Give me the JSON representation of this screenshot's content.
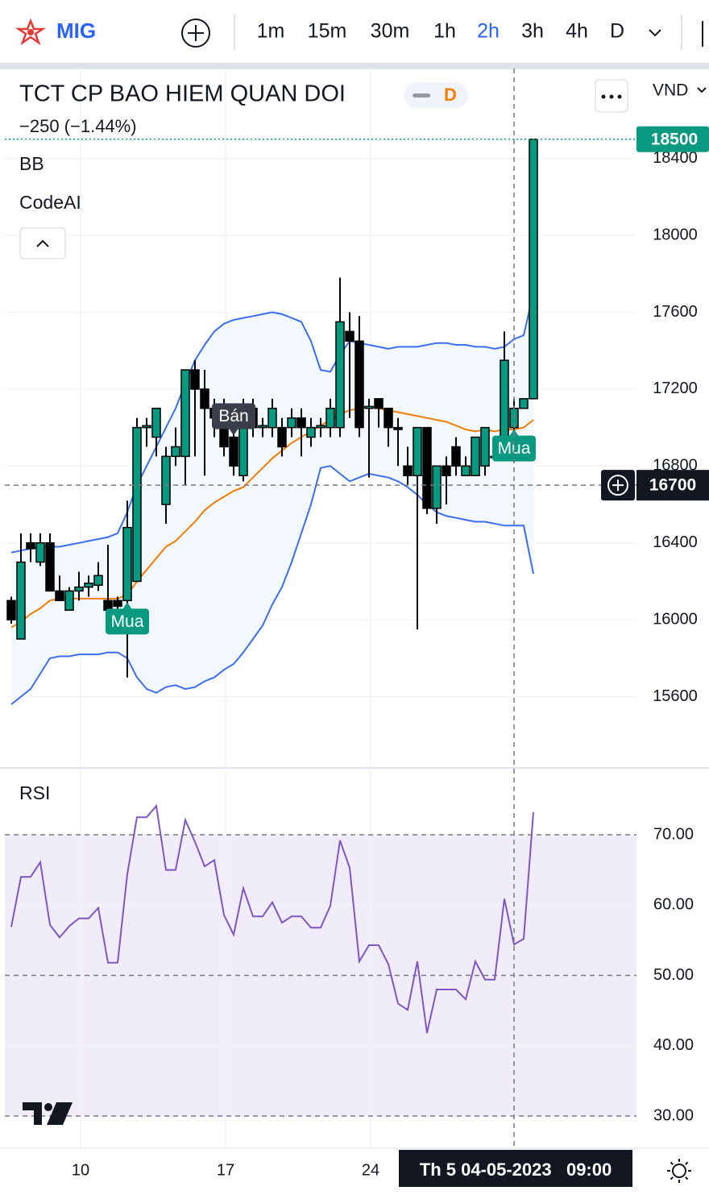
{
  "toolbar": {
    "symbol": "MIG",
    "intervals": [
      "1m",
      "15m",
      "30m",
      "1h",
      "2h",
      "3h",
      "4h",
      "D"
    ],
    "active_interval": 4,
    "active_color": "#2962ff"
  },
  "header": {
    "title": "TCT CP BAO HIEM QUAN DOI",
    "badge": "D",
    "change": "−250 (−1.44%)",
    "indicators": [
      "BB",
      "CodeAI"
    ],
    "currency": "VND"
  },
  "chart_data": [
    {
      "type": "candlestick",
      "open": [
        16100,
        15900,
        16400,
        16300,
        16400,
        16150,
        16050,
        16150,
        16170,
        16180,
        16100,
        16100,
        16100,
        16200,
        17000,
        16950,
        16600,
        16850,
        16850,
        17300,
        17200,
        17100,
        17050,
        16950,
        16750,
        17100,
        17000,
        17000,
        17000,
        17000,
        17050,
        16950,
        17000,
        17000,
        17000,
        17500,
        17450,
        17100,
        17150,
        17100,
        17000,
        16800,
        16750,
        17000,
        16580,
        16800,
        16900,
        16750,
        16750,
        16800,
        16850,
        16850,
        17000,
        17100,
        17150
      ],
      "high": [
        16120,
        16450,
        16450,
        16450,
        16450,
        16230,
        16170,
        16250,
        16230,
        16300,
        16390,
        16120,
        16620,
        17050,
        17050,
        17100,
        16900,
        17000,
        17300,
        17350,
        17300,
        17150,
        17150,
        17100,
        17150,
        17150,
        17050,
        17150,
        17050,
        17100,
        17100,
        17050,
        17050,
        17150,
        17780,
        17600,
        17580,
        17150,
        17150,
        17100,
        17050,
        16900,
        17000,
        17000,
        16800,
        16850,
        16950,
        16850,
        16950,
        17000,
        16900,
        17500,
        17150,
        17150,
        18500
      ],
      "low": [
        15980,
        15900,
        16300,
        16280,
        16150,
        16100,
        16050,
        16100,
        16120,
        16150,
        16050,
        16050,
        15700,
        16200,
        16900,
        16850,
        16500,
        16800,
        16700,
        16850,
        16750,
        16950,
        16850,
        16750,
        16720,
        16950,
        16950,
        16950,
        16850,
        16950,
        16850,
        16900,
        16950,
        16950,
        16950,
        17050,
        16950,
        16740,
        17000,
        16900,
        16800,
        16700,
        15950,
        16550,
        16500,
        16600,
        16750,
        16750,
        16750,
        16750,
        16850,
        16850,
        16820,
        17100,
        17150
      ],
      "close": [
        16000,
        16300,
        16370,
        16400,
        16150,
        16100,
        16150,
        16170,
        16190,
        16230,
        16050,
        16070,
        16480,
        17000,
        17010,
        17100,
        16850,
        16900,
        17300,
        17200,
        17100,
        17050,
        16900,
        16800,
        17100,
        17000,
        17010,
        17100,
        16900,
        17050,
        17000,
        17000,
        17010,
        17100,
        17550,
        17450,
        17000,
        17110,
        17100,
        17000,
        16990,
        16750,
        17000,
        16580,
        16800,
        16750,
        16800,
        16800,
        16950,
        17000,
        16850,
        17350,
        17100,
        17150,
        18500
      ],
      "up_color": "#089981",
      "down_color": "#000000",
      "bands": {
        "upper": [
          16350,
          16360,
          16370,
          16380,
          16380,
          16380,
          16390,
          16400,
          16410,
          16420,
          16430,
          16450,
          16560,
          16700,
          16800,
          16900,
          17000,
          17100,
          17230,
          17350,
          17430,
          17500,
          17540,
          17560,
          17570,
          17580,
          17590,
          17600,
          17590,
          17570,
          17550,
          17450,
          17300,
          17290,
          17380,
          17450,
          17440,
          17430,
          17420,
          17410,
          17420,
          17420,
          17420,
          17430,
          17440,
          17440,
          17430,
          17430,
          17420,
          17420,
          17410,
          17420,
          17460,
          17480,
          17700
        ],
        "middle": [
          15960,
          15990,
          16030,
          16060,
          16100,
          16110,
          16110,
          16110,
          16110,
          16110,
          16110,
          16110,
          16130,
          16200,
          16260,
          16320,
          16380,
          16410,
          16460,
          16510,
          16570,
          16610,
          16640,
          16670,
          16690,
          16740,
          16790,
          16840,
          16880,
          16920,
          16950,
          16980,
          17010,
          17040,
          17070,
          17090,
          17100,
          17110,
          17100,
          17090,
          17080,
          17070,
          17060,
          17050,
          17040,
          17030,
          17010,
          16990,
          16980,
          16990,
          16980,
          16990,
          16990,
          17000,
          17040
        ],
        "lower": [
          15560,
          15600,
          15640,
          15720,
          15800,
          15810,
          15810,
          15820,
          15820,
          15820,
          15830,
          15830,
          15800,
          15700,
          15640,
          15620,
          15650,
          15660,
          15640,
          15650,
          15680,
          15700,
          15740,
          15770,
          15830,
          15900,
          15970,
          16080,
          16170,
          16300,
          16450,
          16600,
          16790,
          16800,
          16760,
          16720,
          16740,
          16760,
          16750,
          16740,
          16720,
          16690,
          16650,
          16600,
          16560,
          16540,
          16530,
          16520,
          16510,
          16510,
          16500,
          16490,
          16490,
          16490,
          16240
        ],
        "color": "#3b6ef0",
        "middle_color": "#f57c00",
        "fill": "#f2f8fd"
      },
      "signals": [
        {
          "index": 12,
          "label": "Mua",
          "color": "#089981",
          "position": "below"
        },
        {
          "index": 23,
          "label": "Bán",
          "color": "#3a3e4a",
          "position": "above"
        },
        {
          "index": 52,
          "label": "Mua",
          "color": "#089981",
          "position": "below"
        }
      ],
      "last_price": 18500,
      "crosshair": {
        "index": 52,
        "price": 16700,
        "time_label": "Th 5 04-05-2023   09:00"
      },
      "xlim": [
        -0.667,
        64.667
      ],
      "xticks": [
        {
          "value": 7.17,
          "label": "10"
        },
        {
          "value": 22.17,
          "label": "17"
        },
        {
          "value": 37.17,
          "label": "24"
        }
      ],
      "ylim": [
        15242,
        18868
      ],
      "yticks": [
        15600,
        16000,
        16400,
        16800,
        17200,
        17600,
        18000,
        18400
      ],
      "grid": true
    },
    {
      "type": "line",
      "title": "RSI",
      "values": [
        56.9,
        64,
        64,
        66.1,
        57.2,
        55.4,
        57,
        58.1,
        58.1,
        59.6,
        51.8,
        51.8,
        64.4,
        72.5,
        72.5,
        74.1,
        65,
        65,
        72.1,
        69,
        65.5,
        66.4,
        58.6,
        55.8,
        62.4,
        58.4,
        58.4,
        60.4,
        57.5,
        58.4,
        58.4,
        56.8,
        56.8,
        59.9,
        69.2,
        65.3,
        52,
        54.3,
        54.3,
        51.6,
        46,
        45.1,
        52,
        41.8,
        48,
        48,
        48,
        46.6,
        52,
        49.4,
        49.4,
        60.9,
        54.4,
        55.2,
        73.2
      ],
      "color": "#7e57c2",
      "band": [
        30,
        70
      ],
      "band_color": "#f0ecf9",
      "levels": [
        30,
        50,
        70
      ],
      "ylim": [
        25.42,
        79.28
      ],
      "yticks": [
        {
          "value": 30,
          "label": "30.00"
        },
        {
          "value": 40,
          "label": "40.00"
        },
        {
          "value": 50,
          "label": "50.00"
        },
        {
          "value": 60,
          "label": "60.00"
        },
        {
          "value": 70,
          "label": "70.00"
        }
      ]
    }
  ]
}
